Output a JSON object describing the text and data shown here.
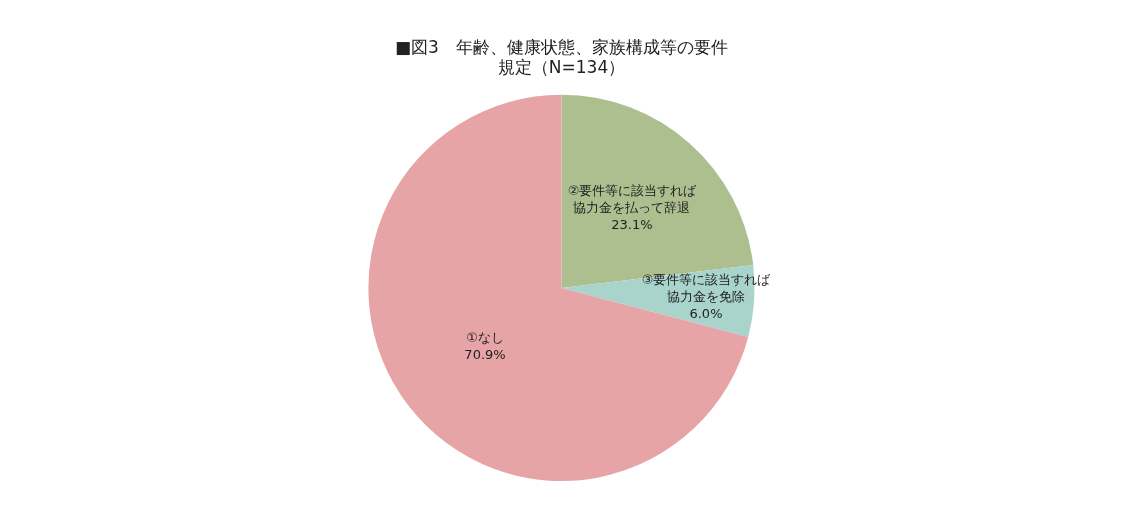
{
  "chart_data": {
    "type": "pie",
    "title": "■図3　年齢、健康状態、家族構成等の要件規定（N=134）",
    "categories": [
      "②要件等に該当すれば協力金を払って辞退",
      "③要件等に該当すれば協力金を免除",
      "①なし"
    ],
    "values": [
      23.1,
      6.0,
      70.9
    ],
    "value_labels": [
      "23.1%",
      "6.0%",
      "70.9%"
    ],
    "colors": [
      "#adbf8f",
      "#a8d4cc",
      "#e6a4a7"
    ]
  }
}
